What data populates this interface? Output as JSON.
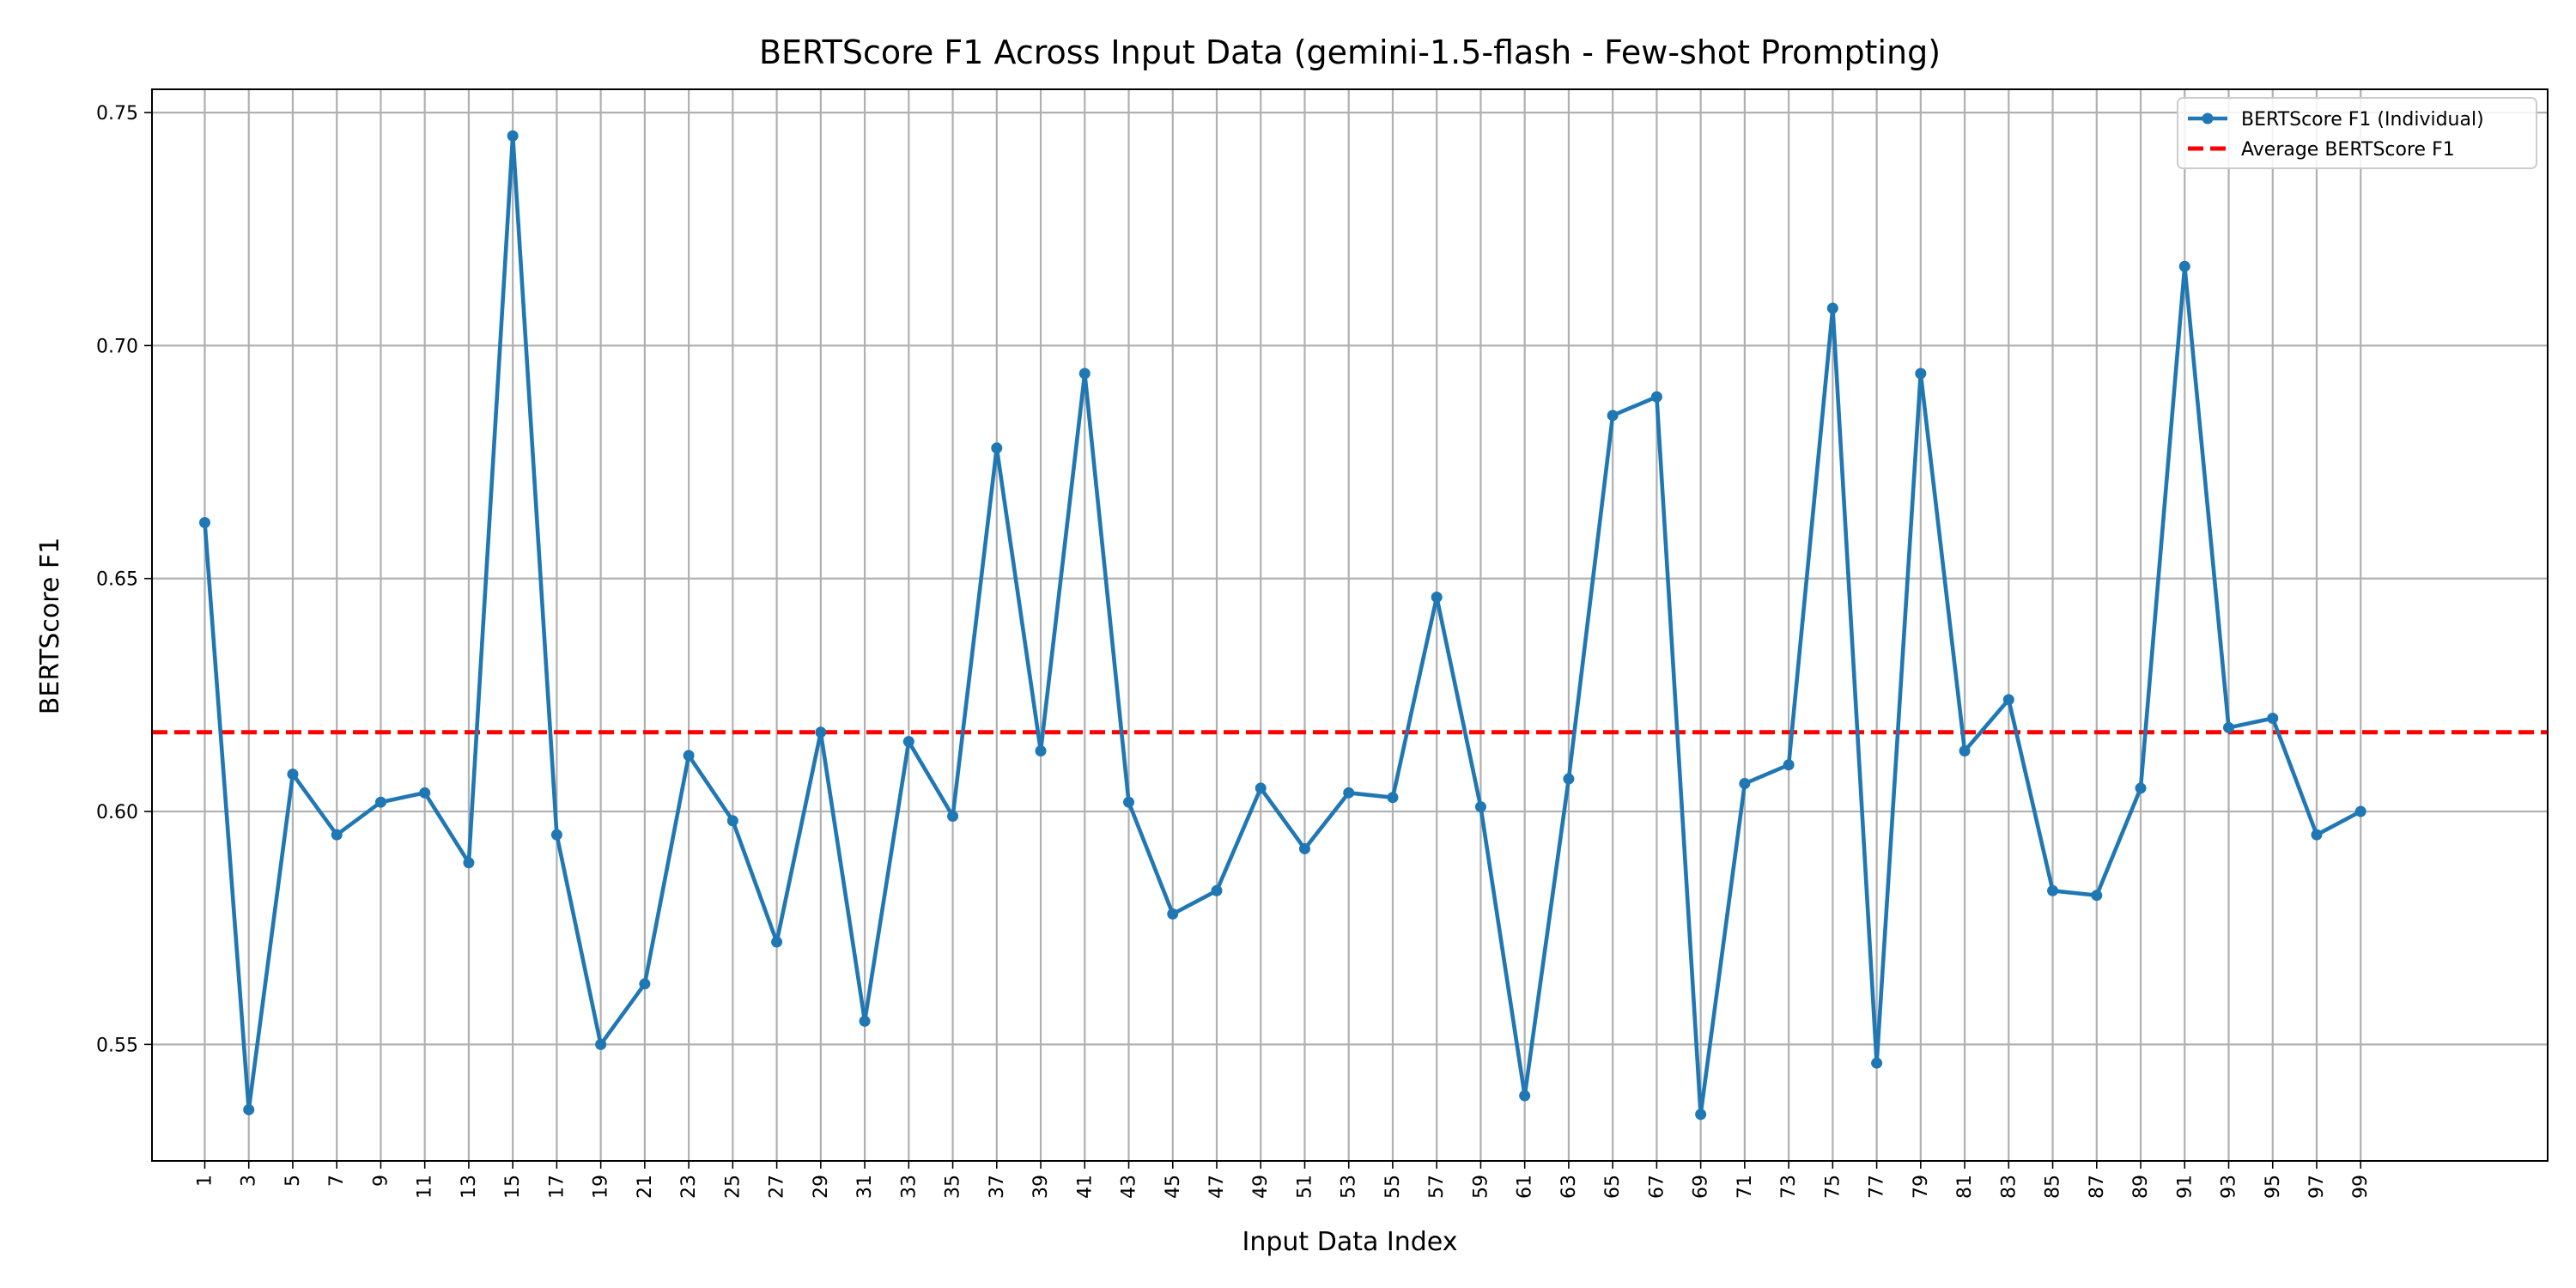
{
  "chart_data": {
    "type": "line",
    "title": "BERTScore F1 Across Input Data (gemini-1.5-flash - Few-shot Prompting)",
    "xlabel": "Input Data Index",
    "ylabel": "BERTScore F1",
    "xlim": [
      -1.4,
      107.5
    ],
    "ylim": [
      0.525,
      0.755
    ],
    "x": [
      1,
      3,
      5,
      7,
      9,
      11,
      13,
      15,
      17,
      19,
      21,
      23,
      25,
      27,
      29,
      31,
      33,
      35,
      37,
      39,
      41,
      43,
      45,
      47,
      49,
      51,
      53,
      55,
      57,
      59,
      61,
      63,
      65,
      67,
      69,
      71,
      73,
      75,
      77,
      79,
      81,
      83,
      85,
      87,
      89,
      91,
      93,
      95,
      97,
      99
    ],
    "xticks": [
      "1",
      "3",
      "5",
      "7",
      "9",
      "11",
      "13",
      "15",
      "17",
      "19",
      "21",
      "23",
      "25",
      "27",
      "29",
      "31",
      "33",
      "35",
      "37",
      "39",
      "41",
      "43",
      "45",
      "47",
      "49",
      "51",
      "53",
      "55",
      "57",
      "59",
      "61",
      "63",
      "65",
      "67",
      "69",
      "71",
      "73",
      "75",
      "77",
      "79",
      "81",
      "83",
      "85",
      "87",
      "89",
      "91",
      "93",
      "95",
      "97",
      "99"
    ],
    "yticks": [
      0.55,
      0.6,
      0.65,
      0.7,
      0.75
    ],
    "ytick_labels": [
      "0.55",
      "0.60",
      "0.65",
      "0.70",
      "0.75"
    ],
    "grid": true,
    "legend_position": "top-right",
    "series": [
      {
        "name": "BERTScore F1 (Individual)",
        "style": "solid-with-markers",
        "color": "#1f77b4",
        "values": [
          0.662,
          0.536,
          0.608,
          0.595,
          0.602,
          0.604,
          0.589,
          0.745,
          0.595,
          0.55,
          0.563,
          0.612,
          0.598,
          0.572,
          0.617,
          0.555,
          0.615,
          0.599,
          0.678,
          0.613,
          0.694,
          0.602,
          0.578,
          0.583,
          0.605,
          0.592,
          0.604,
          0.603,
          0.646,
          0.601,
          0.539,
          0.607,
          0.685,
          0.689,
          0.535,
          0.606,
          0.61,
          0.708,
          0.546,
          0.694,
          0.613,
          0.624,
          0.583,
          0.582,
          0.605,
          0.717,
          0.618,
          0.62,
          0.595,
          0.6
        ]
      },
      {
        "name": "Average BERTScore F1",
        "style": "dashed",
        "color": "#ff0000",
        "value": 0.617
      }
    ]
  }
}
